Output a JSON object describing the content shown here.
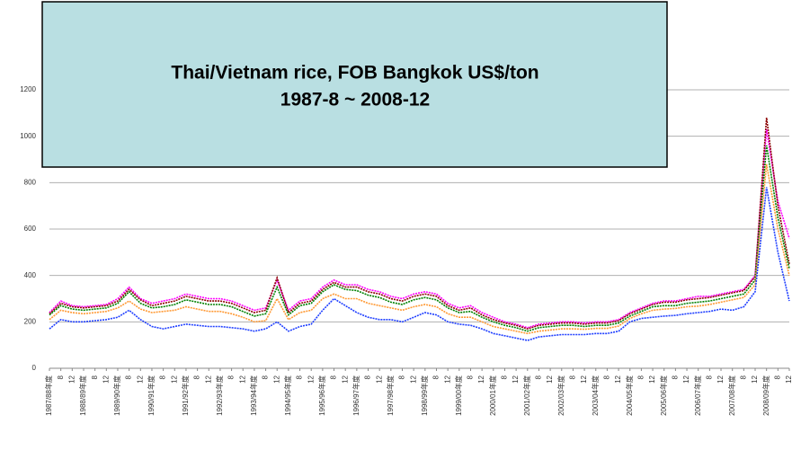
{
  "chart_data": {
    "type": "line",
    "title": "Thai/Vietnam rice, FOB Bangkok US$/ton",
    "subtitle": "1987-8 ~ 2008-12",
    "categories": [
      "1987/88年度",
      "8",
      "12",
      "1988/89年度",
      "8",
      "12",
      "1989/90年度",
      "8",
      "12",
      "1990/91年度",
      "8",
      "12",
      "1991/92年度",
      "8",
      "12",
      "1992/93年度",
      "8",
      "12",
      "1993/94年度",
      "8",
      "12",
      "1994/95年度",
      "8",
      "12",
      "1995/96年度",
      "8",
      "12",
      "1996/97年度",
      "8",
      "12",
      "1997/98年度",
      "8",
      "12",
      "1998/99年度",
      "8",
      "12",
      "1999/00年度",
      "8",
      "12",
      "2000/01年度",
      "8",
      "12",
      "2001/02年度",
      "8",
      "12",
      "2002/03年度",
      "8",
      "12",
      "2003/04年度",
      "8",
      "12",
      "2004/05年度",
      "8",
      "12",
      "2005/06年度",
      "8",
      "12",
      "2006/07年度",
      "8",
      "12",
      "2007/08年度",
      "8",
      "12",
      "2008/09年度",
      "8",
      "12"
    ],
    "series": [
      {
        "color": "#ff00ff",
        "values": [
          240,
          290,
          270,
          265,
          270,
          275,
          300,
          350,
          300,
          280,
          290,
          300,
          320,
          310,
          300,
          300,
          290,
          270,
          250,
          260,
          380,
          250,
          290,
          300,
          350,
          380,
          360,
          360,
          340,
          330,
          310,
          300,
          320,
          330,
          320,
          280,
          260,
          270,
          240,
          220,
          200,
          190,
          175,
          190,
          195,
          200,
          200,
          195,
          200,
          200,
          210,
          240,
          260,
          280,
          290,
          290,
          300,
          310,
          310,
          320,
          330,
          340,
          400,
          1030,
          720,
          560
        ]
      },
      {
        "color": "#8b0000",
        "values": [
          235,
          280,
          265,
          260,
          265,
          270,
          290,
          340,
          295,
          270,
          280,
          290,
          310,
          300,
          290,
          290,
          280,
          260,
          240,
          250,
          390,
          240,
          280,
          290,
          340,
          370,
          350,
          350,
          330,
          320,
          300,
          290,
          310,
          320,
          310,
          270,
          250,
          260,
          230,
          210,
          195,
          185,
          170,
          185,
          190,
          195,
          195,
          190,
          195,
          195,
          205,
          235,
          255,
          275,
          285,
          285,
          295,
          300,
          305,
          315,
          325,
          335,
          395,
          1080,
          700,
          450
        ]
      },
      {
        "color": "#008000",
        "values": [
          230,
          270,
          255,
          250,
          255,
          260,
          280,
          330,
          280,
          260,
          265,
          275,
          295,
          285,
          275,
          275,
          265,
          245,
          225,
          235,
          350,
          230,
          270,
          280,
          330,
          360,
          340,
          335,
          315,
          305,
          285,
          275,
          295,
          305,
          295,
          260,
          240,
          245,
          220,
          200,
          185,
          175,
          160,
          175,
          180,
          185,
          185,
          180,
          185,
          185,
          195,
          225,
          245,
          265,
          270,
          270,
          280,
          285,
          290,
          300,
          310,
          320,
          380,
          960,
          650,
          430
        ]
      },
      {
        "color": "#ff9933",
        "values": [
          210,
          250,
          240,
          235,
          240,
          245,
          260,
          290,
          255,
          240,
          245,
          250,
          265,
          255,
          245,
          245,
          235,
          220,
          200,
          205,
          300,
          210,
          240,
          250,
          300,
          320,
          300,
          300,
          280,
          270,
          260,
          250,
          265,
          275,
          265,
          235,
          220,
          220,
          200,
          180,
          170,
          160,
          150,
          160,
          165,
          170,
          170,
          168,
          172,
          172,
          182,
          215,
          235,
          250,
          255,
          258,
          265,
          268,
          275,
          285,
          295,
          305,
          360,
          880,
          600,
          400
        ]
      },
      {
        "color": "#1f3fff",
        "values": [
          170,
          210,
          200,
          200,
          205,
          210,
          220,
          250,
          210,
          180,
          170,
          180,
          190,
          185,
          180,
          180,
          175,
          170,
          160,
          170,
          200,
          160,
          180,
          190,
          250,
          300,
          270,
          240,
          220,
          210,
          210,
          200,
          220,
          240,
          230,
          200,
          190,
          185,
          170,
          150,
          140,
          130,
          120,
          135,
          140,
          145,
          145,
          145,
          150,
          150,
          160,
          200,
          215,
          220,
          225,
          228,
          235,
          240,
          245,
          255,
          250,
          265,
          330,
          780,
          500,
          290
        ]
      }
    ],
    "ylim": [
      0,
      1200
    ],
    "yticks": [
      0,
      200,
      400,
      600,
      800,
      1000,
      1200
    ],
    "grid": true
  }
}
